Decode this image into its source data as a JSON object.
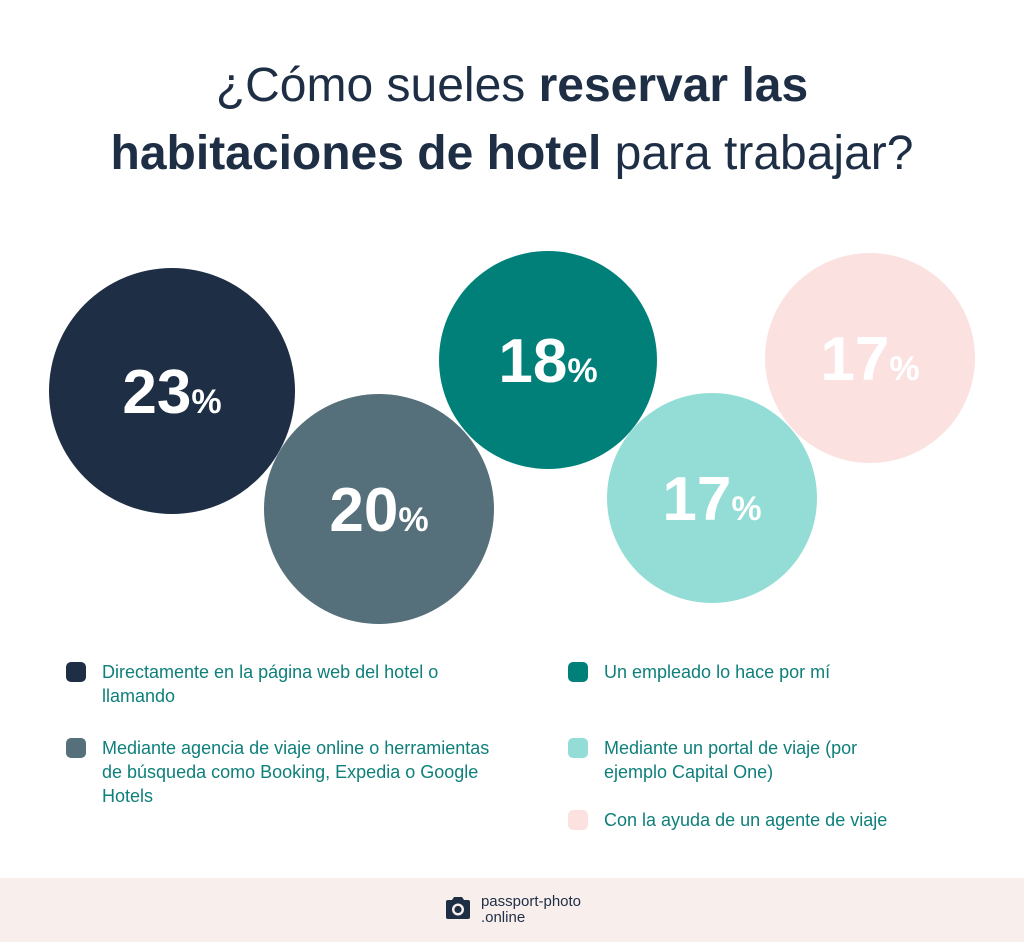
{
  "title": {
    "part1": "¿Cómo sueles ",
    "part2_bold": "reservar las",
    "part3_bold": "habitaciones de hotel",
    "part4": " para trabajar?"
  },
  "chart_data": {
    "type": "bubble",
    "unit": "%",
    "series": [
      {
        "label": "Directamente en la página web del hotel o llamando",
        "value": 23,
        "color": "#1e2e45",
        "value_color": "#ffffff"
      },
      {
        "label": "Mediante agencia de viaje online o herramientas de búsqueda como Booking, Expedia o Google Hotels",
        "value": 20,
        "color": "#56707b",
        "value_color": "#ffffff"
      },
      {
        "label": "Un empleado lo hace por mí",
        "value": 18,
        "color": "#01807a",
        "value_color": "#ffffff"
      },
      {
        "label": "Mediante un portal de viaje (por ejemplo Capital One)",
        "value": 17,
        "color": "#94ddd6",
        "value_color": "#ffffff"
      },
      {
        "label": "Con la ayuda de un agente de viaje",
        "value": 17,
        "color": "#fbe2e1",
        "value_color": "#ffffff"
      }
    ]
  },
  "footer": {
    "logo_line1": "passport-photo",
    "logo_line2": ".online",
    "logo_icon": "camera-icon"
  }
}
